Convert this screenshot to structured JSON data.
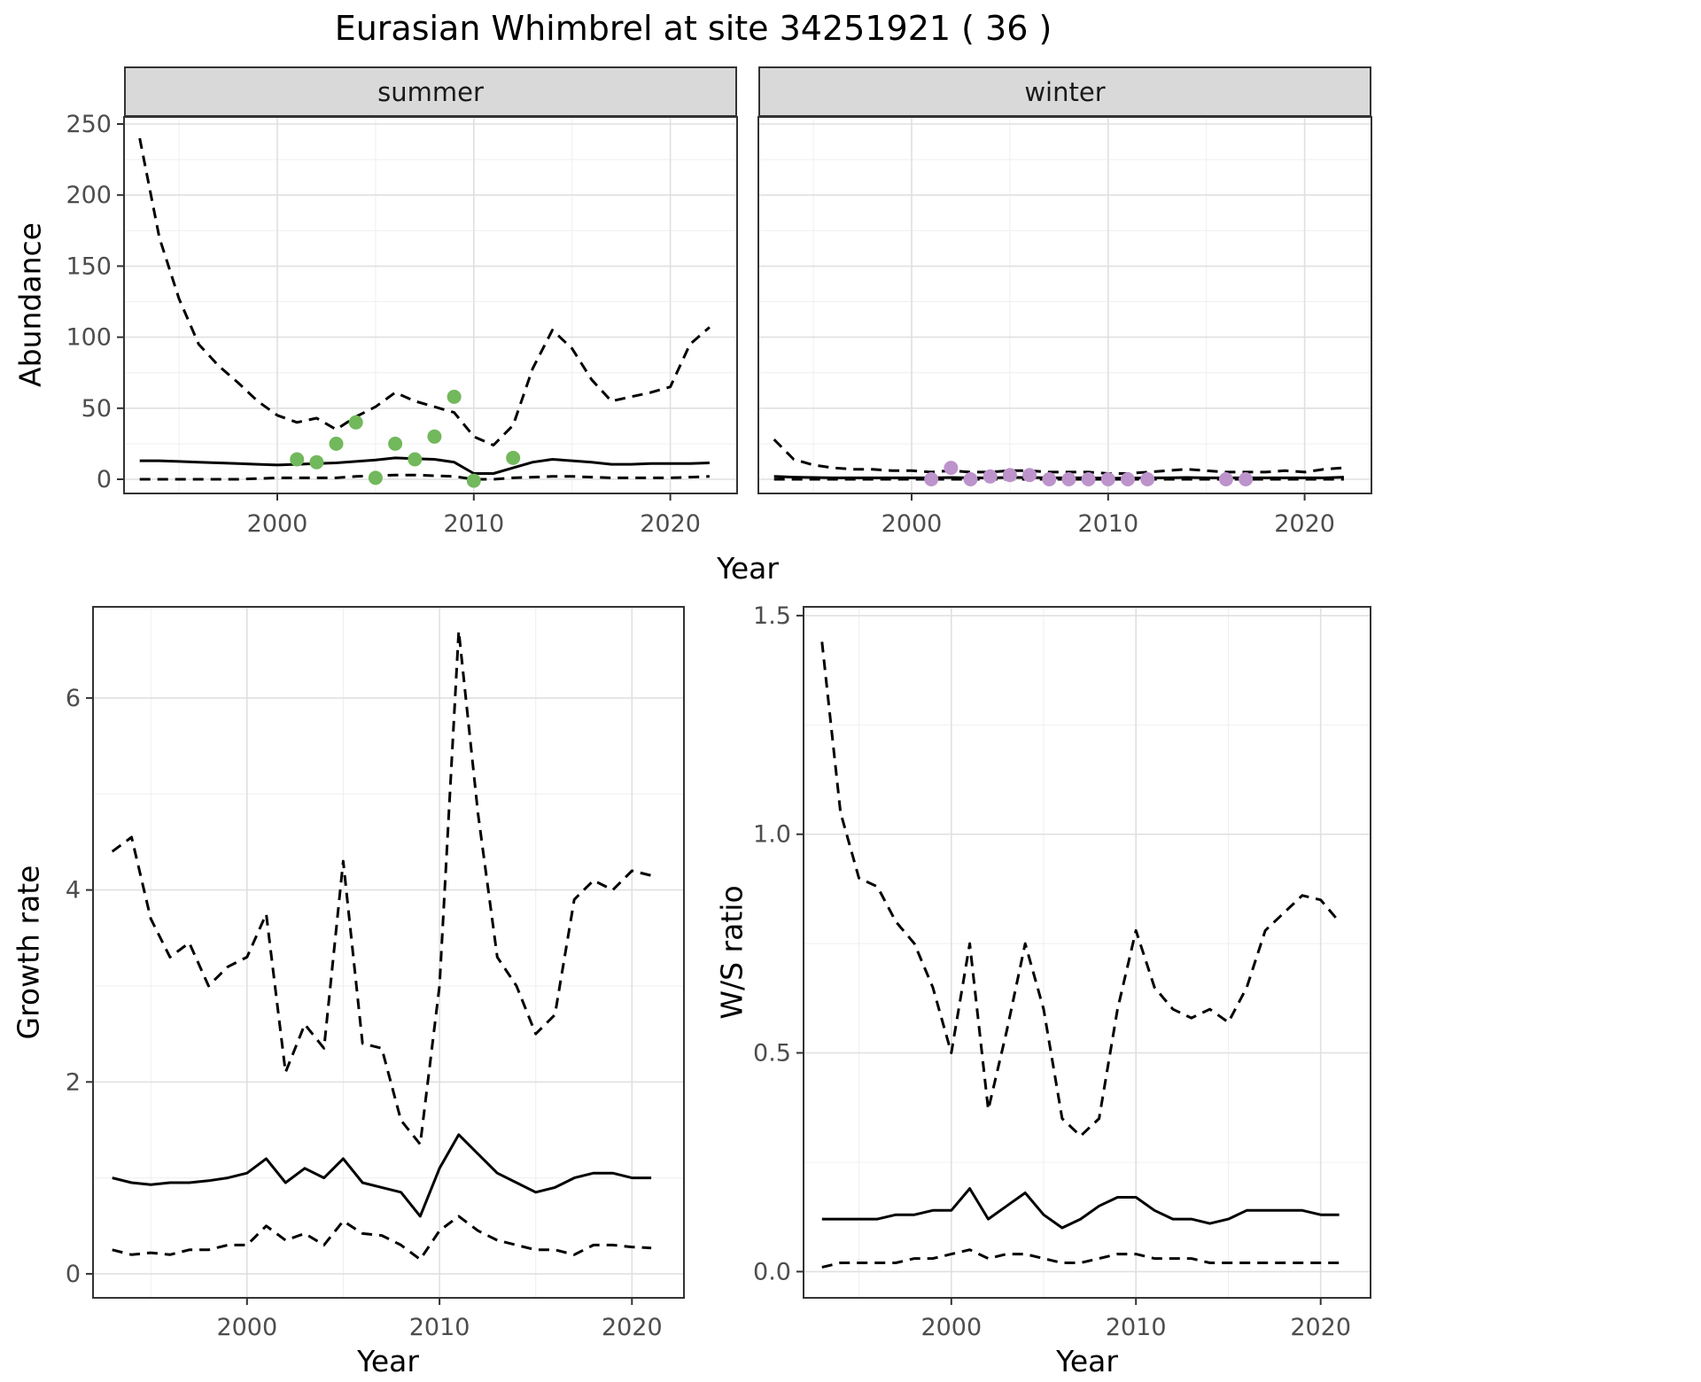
{
  "title": "Eurasian Whimbrel at site 34251921 ( 36 )",
  "colors": {
    "summer_points": "#72b85c",
    "winter_points": "#bd93cb",
    "line": "#000000",
    "strip_bg": "#d9d9d9",
    "panel_border": "#333333",
    "grid_major": "#e0e0e0",
    "grid_minor": "#f0f0f0",
    "tick_text": "#4d4d4d"
  },
  "chart_data": [
    {
      "id": "abundance_summer",
      "type": "line",
      "facet_label": "summer",
      "xlabel": "Year",
      "ylabel": "Abundance",
      "x": [
        1993,
        1994,
        1995,
        1996,
        1997,
        1998,
        1999,
        2000,
        2001,
        2002,
        2003,
        2004,
        2005,
        2006,
        2007,
        2008,
        2009,
        2010,
        2011,
        2012,
        2013,
        2014,
        2015,
        2016,
        2017,
        2018,
        2019,
        2020,
        2021,
        2022
      ],
      "series": [
        {
          "name": "upper_95ci",
          "style": "dashed",
          "values": [
            240,
            170,
            127,
            95,
            80,
            68,
            55,
            45,
            40,
            43,
            35,
            44,
            51,
            61,
            55,
            51,
            47,
            30,
            24,
            38,
            78,
            105,
            92,
            70,
            55,
            58,
            61,
            65,
            95,
            107
          ]
        },
        {
          "name": "estimate",
          "style": "solid",
          "values": [
            13,
            13,
            12.5,
            12,
            11.5,
            11,
            10.5,
            10,
            10.5,
            11,
            11.5,
            12.5,
            13.5,
            15,
            14.5,
            14,
            12,
            4,
            4,
            8,
            12,
            14,
            13,
            12,
            10.5,
            10.5,
            11,
            11,
            11,
            11.5
          ]
        },
        {
          "name": "lower_95ci",
          "style": "dashed",
          "values": [
            0,
            0,
            0,
            0,
            0,
            0,
            0.5,
            1,
            1,
            1,
            1,
            2,
            2.5,
            3,
            3,
            2.5,
            2,
            0,
            0,
            1,
            1.5,
            2,
            2,
            1.5,
            1,
            1,
            1,
            1,
            1.5,
            2
          ]
        }
      ],
      "points": {
        "name": "observed_counts",
        "color": "#72b85c",
        "x": [
          2001,
          2002,
          2003,
          2004,
          2005,
          2006,
          2007,
          2008,
          2009,
          2010,
          2012
        ],
        "y": [
          14,
          12,
          25,
          40,
          1,
          25,
          14,
          30,
          58,
          -1,
          15
        ]
      },
      "xlim": [
        1992.2,
        2023.4
      ],
      "ylim": [
        -10,
        255
      ],
      "xticks": [
        2000,
        2010,
        2020
      ],
      "xtick_labels": [
        "2000",
        "2010",
        "2020"
      ],
      "yticks": [
        0,
        50,
        100,
        150,
        200,
        250
      ],
      "ytick_labels": [
        "0",
        "50",
        "100",
        "150",
        "200",
        "250"
      ]
    },
    {
      "id": "abundance_winter",
      "type": "line",
      "facet_label": "winter",
      "xlabel": "Year",
      "ylabel": "",
      "x": [
        1993,
        1994,
        1995,
        1996,
        1997,
        1998,
        1999,
        2000,
        2001,
        2002,
        2003,
        2004,
        2005,
        2006,
        2007,
        2008,
        2009,
        2010,
        2011,
        2012,
        2013,
        2014,
        2015,
        2016,
        2017,
        2018,
        2019,
        2020,
        2021,
        2022
      ],
      "series": [
        {
          "name": "upper_95ci",
          "style": "dashed",
          "values": [
            28,
            14,
            10,
            8,
            7,
            7,
            6,
            6,
            5,
            6,
            5,
            5,
            6,
            6,
            5,
            5,
            5,
            4,
            4,
            5,
            6,
            7,
            6,
            5,
            5,
            5,
            6,
            5,
            7,
            8
          ]
        },
        {
          "name": "estimate",
          "style": "solid",
          "values": [
            2,
            1.5,
            1.2,
            1,
            1,
            1,
            1,
            1,
            1,
            1.2,
            1,
            1,
            1.2,
            1.2,
            1,
            1,
            1,
            0.8,
            0.8,
            1,
            1,
            1.2,
            1,
            1,
            1,
            1,
            1,
            1,
            1,
            1.5
          ]
        },
        {
          "name": "lower_95ci",
          "style": "dashed",
          "values": [
            0,
            0,
            0,
            0,
            0,
            0,
            0,
            0,
            0,
            0,
            0,
            0,
            0,
            0,
            0,
            0,
            0,
            0,
            0,
            0,
            0,
            0,
            0,
            0,
            0,
            0,
            0,
            0,
            0,
            0
          ]
        }
      ],
      "points": {
        "name": "observed_counts",
        "color": "#bd93cb",
        "x": [
          2001,
          2002,
          2003,
          2004,
          2005,
          2006,
          2007,
          2008,
          2009,
          2010,
          2011,
          2012,
          2016,
          2017
        ],
        "y": [
          0,
          8,
          0,
          2,
          3,
          3,
          0,
          0,
          0,
          0,
          0,
          0,
          0,
          0
        ]
      },
      "xlim": [
        1992.2,
        2023.4
      ],
      "ylim": [
        -10,
        255
      ],
      "xticks": [
        2000,
        2010,
        2020
      ],
      "xtick_labels": [
        "2000",
        "2010",
        "2020"
      ],
      "yticks": [
        0,
        50,
        100,
        150,
        200,
        250
      ],
      "ytick_labels": [
        "0",
        "50",
        "100",
        "150",
        "200",
        "250"
      ]
    },
    {
      "id": "growth_rate",
      "type": "line",
      "facet_label": "",
      "xlabel": "Year",
      "ylabel": "Growth rate",
      "x": [
        1993,
        1994,
        1995,
        1996,
        1997,
        1998,
        1999,
        2000,
        2001,
        2002,
        2003,
        2004,
        2005,
        2006,
        2007,
        2008,
        2009,
        2010,
        2011,
        2012,
        2013,
        2014,
        2015,
        2016,
        2017,
        2018,
        2019,
        2020,
        2021
      ],
      "series": [
        {
          "name": "upper_95ci",
          "style": "dashed",
          "values": [
            4.4,
            4.55,
            3.7,
            3.3,
            3.45,
            3.0,
            3.2,
            3.3,
            3.75,
            2.1,
            2.6,
            2.35,
            4.3,
            2.4,
            2.35,
            1.6,
            1.35,
            3.0,
            6.7,
            4.8,
            3.3,
            3.0,
            2.5,
            2.7,
            3.9,
            4.1,
            4.0,
            4.2,
            4.15
          ]
        },
        {
          "name": "estimate",
          "style": "solid",
          "values": [
            1.0,
            0.95,
            0.93,
            0.95,
            0.95,
            0.97,
            1.0,
            1.05,
            1.2,
            0.95,
            1.1,
            1.0,
            1.2,
            0.95,
            0.9,
            0.85,
            0.6,
            1.1,
            1.45,
            1.25,
            1.05,
            0.95,
            0.85,
            0.9,
            1.0,
            1.05,
            1.05,
            1.0,
            1.0
          ]
        },
        {
          "name": "lower_95ci",
          "style": "dashed",
          "values": [
            0.25,
            0.2,
            0.22,
            0.2,
            0.25,
            0.25,
            0.3,
            0.3,
            0.5,
            0.35,
            0.42,
            0.3,
            0.55,
            0.42,
            0.4,
            0.3,
            0.15,
            0.45,
            0.6,
            0.45,
            0.35,
            0.3,
            0.25,
            0.25,
            0.2,
            0.3,
            0.3,
            0.28,
            0.27
          ]
        }
      ],
      "xlim": [
        1992.0,
        2022.7
      ],
      "ylim": [
        -0.25,
        6.95
      ],
      "xticks": [
        2000,
        2010,
        2020
      ],
      "xtick_labels": [
        "2000",
        "2010",
        "2020"
      ],
      "yticks": [
        0,
        2,
        4,
        6
      ],
      "ytick_labels": [
        "0",
        "2",
        "4",
        "6"
      ]
    },
    {
      "id": "ws_ratio",
      "type": "line",
      "facet_label": "",
      "xlabel": "Year",
      "ylabel": "W/S ratio",
      "x": [
        1993,
        1994,
        1995,
        1996,
        1997,
        1998,
        1999,
        2000,
        2001,
        2002,
        2003,
        2004,
        2005,
        2006,
        2007,
        2008,
        2009,
        2010,
        2011,
        2012,
        2013,
        2014,
        2015,
        2016,
        2017,
        2018,
        2019,
        2020,
        2021
      ],
      "series": [
        {
          "name": "upper_95ci",
          "style": "dashed",
          "values": [
            1.44,
            1.05,
            0.9,
            0.88,
            0.8,
            0.75,
            0.65,
            0.5,
            0.75,
            0.37,
            0.55,
            0.75,
            0.6,
            0.35,
            0.31,
            0.35,
            0.6,
            0.78,
            0.65,
            0.6,
            0.58,
            0.6,
            0.57,
            0.65,
            0.78,
            0.82,
            0.86,
            0.85,
            0.8
          ]
        },
        {
          "name": "estimate",
          "style": "solid",
          "values": [
            0.12,
            0.12,
            0.12,
            0.12,
            0.13,
            0.13,
            0.14,
            0.14,
            0.19,
            0.12,
            0.15,
            0.18,
            0.13,
            0.1,
            0.12,
            0.15,
            0.17,
            0.17,
            0.14,
            0.12,
            0.12,
            0.11,
            0.12,
            0.14,
            0.14,
            0.14,
            0.14,
            0.13,
            0.13
          ]
        },
        {
          "name": "lower_95ci",
          "style": "dashed",
          "values": [
            0.01,
            0.02,
            0.02,
            0.02,
            0.02,
            0.03,
            0.03,
            0.04,
            0.05,
            0.03,
            0.04,
            0.04,
            0.03,
            0.02,
            0.02,
            0.03,
            0.04,
            0.04,
            0.03,
            0.03,
            0.03,
            0.02,
            0.02,
            0.02,
            0.02,
            0.02,
            0.02,
            0.02,
            0.02
          ]
        }
      ],
      "xlim": [
        1992.0,
        2022.7
      ],
      "ylim": [
        -0.06,
        1.52
      ],
      "xticks": [
        2000,
        2010,
        2020
      ],
      "xtick_labels": [
        "2000",
        "2010",
        "2020"
      ],
      "yticks": [
        0,
        0.5,
        1.0,
        1.5
      ],
      "ytick_labels": [
        "0.0",
        "0.5",
        "1.0",
        "1.5"
      ]
    }
  ]
}
